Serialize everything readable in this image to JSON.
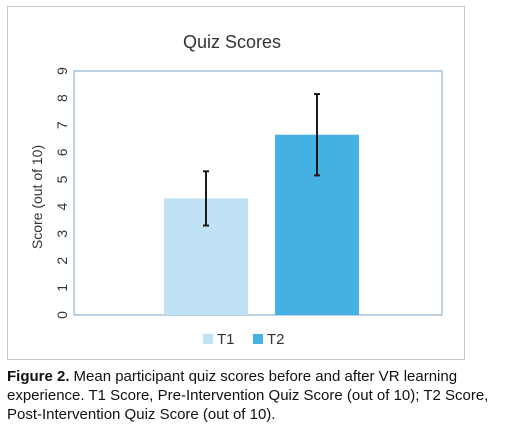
{
  "chart_data": {
    "type": "bar",
    "title": "Quiz Scores",
    "xlabel": "",
    "ylabel": "Score (out of 10)",
    "ylim": [
      0,
      9
    ],
    "yticks": [
      "0",
      "1",
      "2",
      "3",
      "4",
      "5",
      "6",
      "7",
      "8",
      "9"
    ],
    "categories": [
      "T1",
      "T2"
    ],
    "values": [
      4.3,
      6.65
    ],
    "error": [
      1.0,
      1.5
    ],
    "colors": [
      "#bfe3f4",
      "#45b0e2"
    ],
    "error_color": "#1a1a1a",
    "grid": false,
    "legend": "bottom",
    "legend_entries": [
      "T1",
      "T2"
    ]
  },
  "caption": {
    "label": "Figure 2.",
    "text": "Mean participant quiz scores before and after VR learning experience. T1 Score, Pre-Intervention Quiz Score (out of 10); T2 Score, Post-Intervention Quiz Score (out of 10)."
  }
}
